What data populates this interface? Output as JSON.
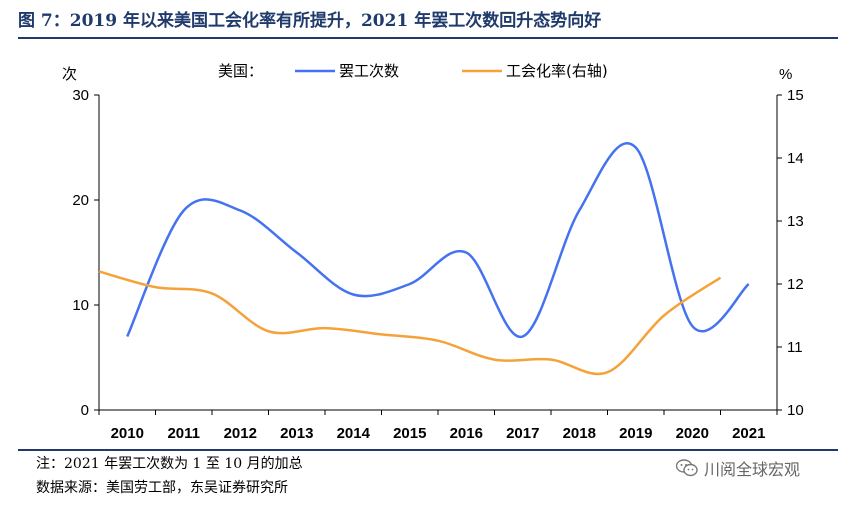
{
  "title": "图 7：2019 年以来美国工会化率有所提升，2021 年罢工次数回升态势向好",
  "note": "注：2021 年罢工次数为 1 至 10 月的加总",
  "source": "数据来源：美国劳工部，东吴证券研究所",
  "watermark": "川阅全球宏观",
  "chart_data": {
    "type": "line",
    "legend_prefix": "美国：",
    "left_unit": "次",
    "right_unit": "%",
    "categories": [
      "2010",
      "2011",
      "2012",
      "2013",
      "2014",
      "2015",
      "2016",
      "2017",
      "2018",
      "2019",
      "2020",
      "2021"
    ],
    "ylim_left": [
      0,
      30
    ],
    "yticks_left": [
      0,
      10,
      20,
      30
    ],
    "ylim_right": [
      10,
      15
    ],
    "yticks_right": [
      10,
      11,
      12,
      13,
      14,
      15
    ],
    "grid": false,
    "series": [
      {
        "name": "罢工次数",
        "axis": "left",
        "color": "#4472f0",
        "x": [
          2010,
          2011,
          2012,
          2013,
          2014,
          2015,
          2016,
          2017,
          2018,
          2019,
          2020,
          2021
        ],
        "values": [
          7,
          19,
          19,
          15,
          11,
          12,
          15,
          7,
          19,
          25,
          8,
          12
        ]
      },
      {
        "name": "工会化率(右轴)",
        "axis": "right",
        "color": "#f5a23a",
        "x": [
          2009.5,
          2010.5,
          2011.5,
          2012.5,
          2013.5,
          2014.5,
          2015.5,
          2016.5,
          2017.5,
          2018.5,
          2019.5,
          2020.5
        ],
        "values": [
          12.2,
          11.95,
          11.85,
          11.25,
          11.3,
          11.2,
          11.1,
          10.8,
          10.8,
          10.6,
          11.5,
          12.1
        ]
      }
    ]
  }
}
